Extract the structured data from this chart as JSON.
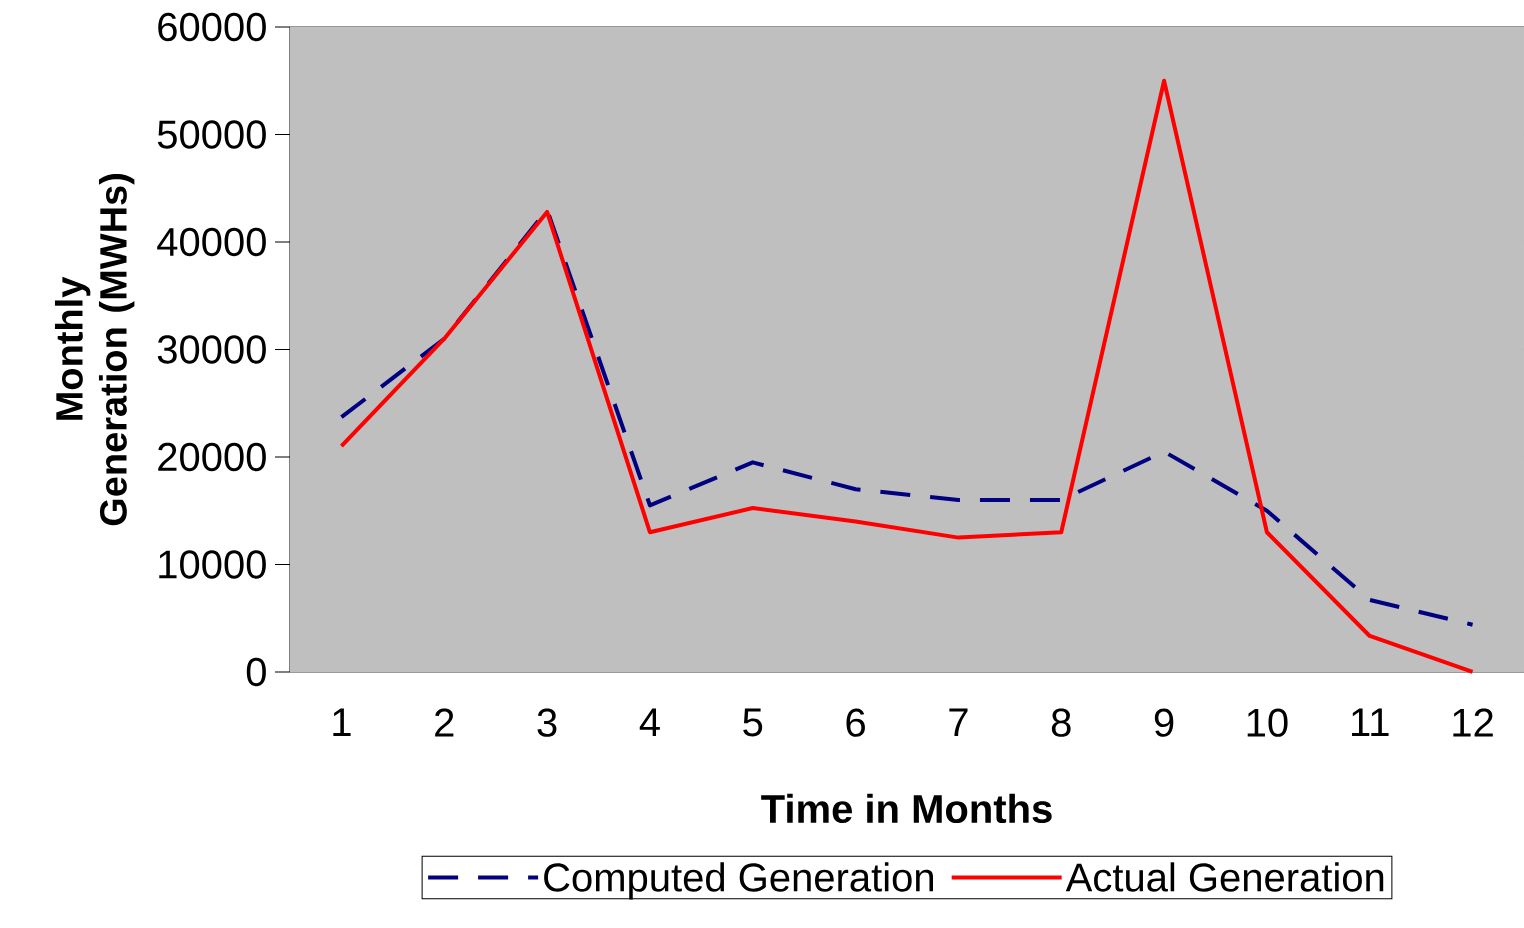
{
  "chart_data": {
    "type": "line",
    "xlabel": "Time in Months",
    "ylabel": "Monthly Generation (MWHs)",
    "categories": [
      "1",
      "2",
      "3",
      "4",
      "5",
      "6",
      "7",
      "8",
      "9",
      "10",
      "11",
      "12"
    ],
    "series": [
      {
        "name": "Computed Generation",
        "color": "#000080",
        "line_style": "dashed",
        "values": [
          23700,
          31000,
          43000,
          15500,
          19500,
          17000,
          16000,
          16000,
          20500,
          15000,
          6700,
          4400
        ]
      },
      {
        "name": "Actual Generation",
        "color": "#ff0000",
        "line_style": "solid",
        "values": [
          21000,
          31000,
          42800,
          13000,
          15250,
          14000,
          12500,
          13000,
          55000,
          13000,
          3350,
          0
        ]
      }
    ],
    "ylim": [
      0,
      60000
    ],
    "yticks": [
      0,
      10000,
      20000,
      30000,
      40000,
      50000,
      60000
    ],
    "grid": "y",
    "legend": "bottom",
    "marker": "none"
  }
}
